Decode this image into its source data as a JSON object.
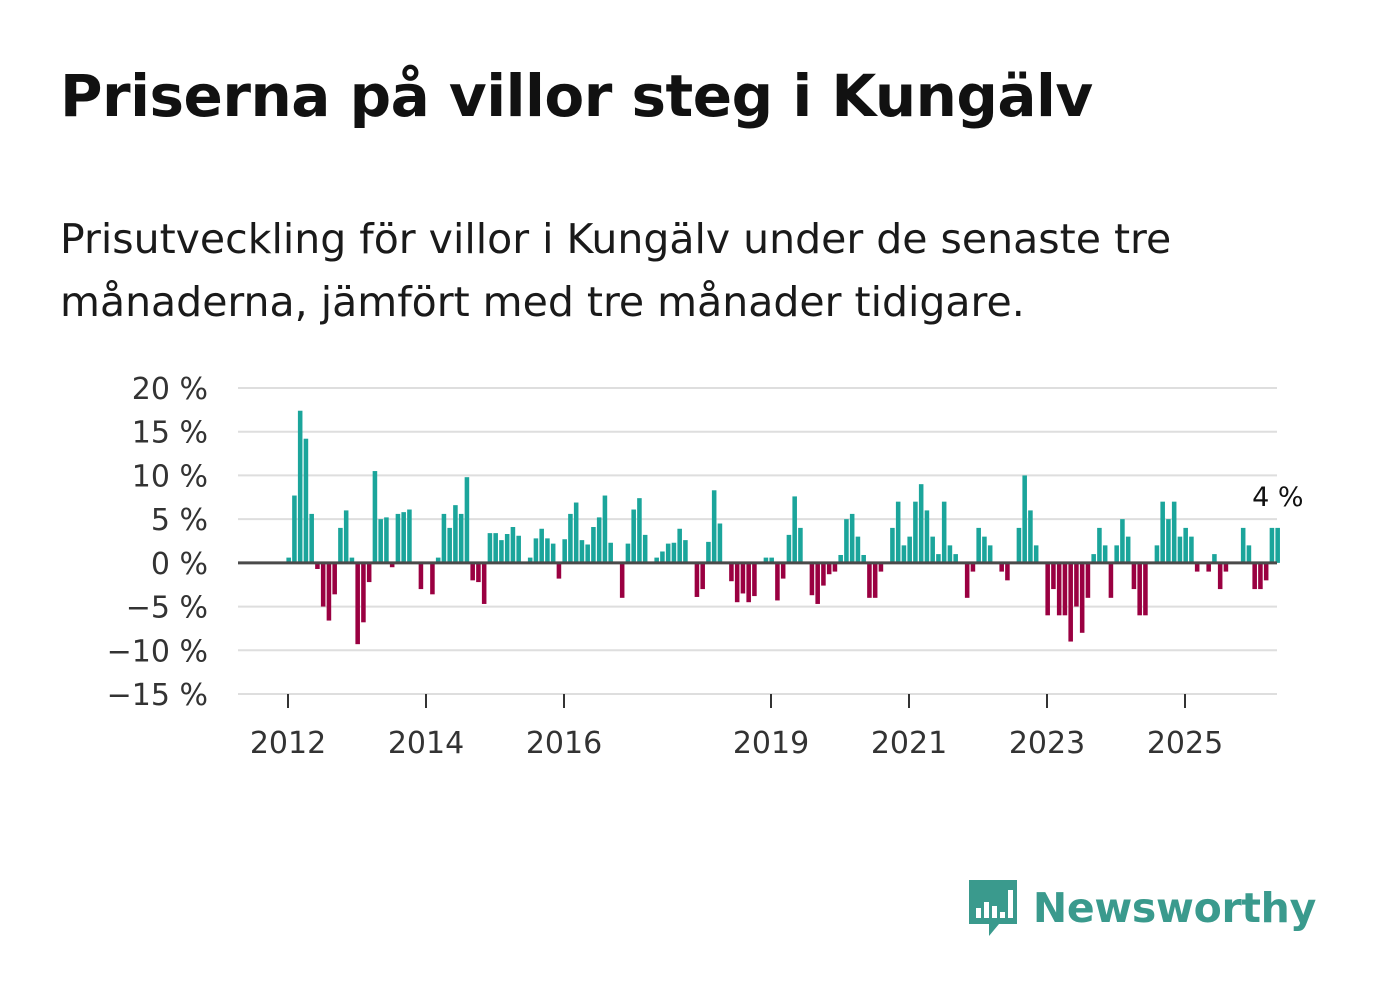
{
  "chart_data": {
    "type": "bar",
    "title": "Priserna på villor steg i Kungälv",
    "subtitle": "Prisutveckling för villor i Kungälv under de senaste tre månaderna, jämfört med tre månader tidigare.",
    "xlabel": "",
    "ylabel": "",
    "ylim": [
      -15,
      20
    ],
    "y_ticks": [
      20,
      15,
      10,
      5,
      0,
      -5,
      -10,
      -15
    ],
    "y_tick_labels": [
      "20 %",
      "15 %",
      "10 %",
      "5 %",
      "0 %",
      "−5 %",
      "−10 %",
      "−15 %"
    ],
    "x_ticks": [
      2012,
      2014,
      2016,
      2019,
      2021,
      2023,
      2025
    ],
    "x_tick_labels": [
      "2012",
      "2014",
      "2016",
      "2019",
      "2021",
      "2023",
      "2025"
    ],
    "start": "2012-01",
    "frequency": "monthly",
    "values": [
      0.6,
      7.7,
      17.4,
      14.2,
      5.6,
      -0.7,
      -5.0,
      -6.6,
      -3.6,
      4.0,
      6.0,
      0.6,
      -9.3,
      -6.8,
      -2.2,
      10.5,
      5.0,
      5.2,
      -0.5,
      5.6,
      5.8,
      6.1,
      0,
      -3.0,
      0,
      -3.6,
      0.6,
      5.6,
      4.0,
      6.6,
      5.6,
      9.8,
      -2.0,
      -2.2,
      -4.7,
      3.4,
      3.4,
      2.6,
      3.3,
      4.1,
      3.1,
      0,
      0.6,
      2.8,
      3.9,
      2.8,
      2.2,
      -1.8,
      2.7,
      5.6,
      6.9,
      2.6,
      2.1,
      4.1,
      5.2,
      7.7,
      2.3,
      0,
      -4.0,
      2.2,
      6.1,
      7.4,
      3.2,
      0,
      0.6,
      1.3,
      2.2,
      2.3,
      3.9,
      2.6,
      0,
      -3.9,
      -3.0,
      2.4,
      8.3,
      4.5,
      0,
      -2.1,
      -4.5,
      -3.5,
      -4.5,
      -3.8,
      0,
      0.6,
      0.6,
      -4.3,
      -1.8,
      3.2,
      7.6,
      4.0,
      0,
      -3.7,
      -4.7,
      -2.6,
      -1.3,
      -1.0,
      0.9,
      5.0,
      5.6,
      3.0,
      0.9,
      -4.0,
      -4.0,
      -1.0,
      0,
      4.0,
      7.0,
      2.0,
      3.0,
      7.0,
      9.0,
      6.0,
      3.0,
      1.0,
      7.0,
      2.0,
      1.0,
      0,
      -4.0,
      -1.0,
      4.0,
      3.0,
      2.0,
      0,
      -1.0,
      -2.0,
      0,
      4.0,
      10.0,
      6.0,
      2.0,
      0,
      -6.0,
      -3.0,
      -6.0,
      -6.0,
      -9.0,
      -5.0,
      -8.0,
      -4.0,
      1.0,
      4.0,
      2.0,
      -4.0,
      2.0,
      5.0,
      3.0,
      -3.0,
      -6.0,
      -6.0,
      0,
      2.0,
      7.0,
      5.0,
      7.0,
      3.0,
      4.0,
      3.0,
      -1.0,
      0,
      -1.0,
      1.0,
      -3.0,
      -1.0,
      0,
      0,
      4.0,
      2.0,
      -3.0,
      -3.0,
      -2.0,
      4.0,
      4.0
    ],
    "colors": {
      "positive": "#1ba59b",
      "negative": "#9a0041",
      "gridline": "#dedede",
      "zero_line": "#4a4a4a",
      "axis_text": "#333333"
    },
    "annotations": [
      {
        "text": "4 %",
        "target": "last"
      }
    ]
  },
  "brand": {
    "name": "Newsworthy",
    "icon": "bar-chart-speech-bubble-icon",
    "color": "#3a9a8d"
  }
}
